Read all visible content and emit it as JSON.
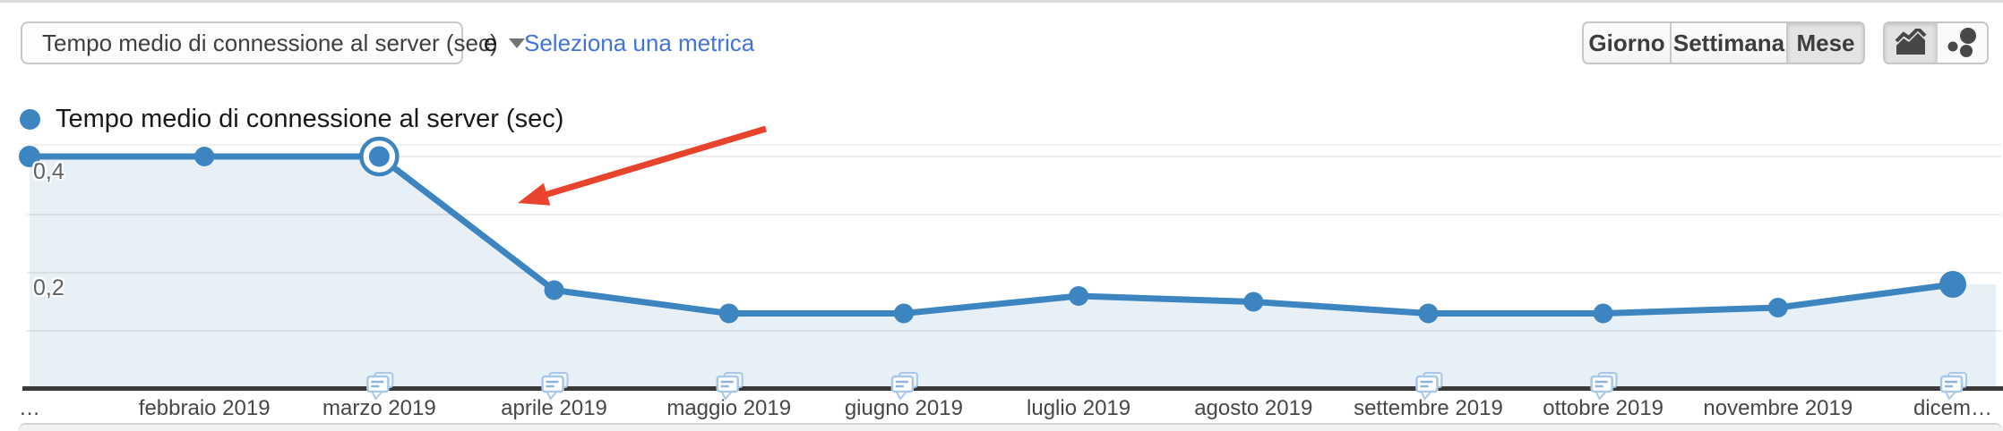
{
  "header": {
    "metric_dropdown": {
      "value": "Tempo medio di connessione al server (sec)"
    },
    "conjunction": "e",
    "select_metric_link": "Seleziona una metrica",
    "granularity_buttons": [
      {
        "label": "Giorno",
        "active": false
      },
      {
        "label": "Settimana",
        "active": false
      },
      {
        "label": "Mese",
        "active": true
      }
    ],
    "chart_type_buttons": [
      {
        "name": "line-chart-icon",
        "active": true
      },
      {
        "name": "bubble-chart-icon",
        "active": false
      }
    ]
  },
  "legend": {
    "label": "Tempo medio di connessione al server (sec)",
    "color": "#3d85c1"
  },
  "chart_data": {
    "type": "area",
    "title": "Tempo medio di connessione al server (sec)",
    "x_categories": [
      "…",
      "febbraio 2019",
      "marzo 2019",
      "aprile 2019",
      "maggio 2019",
      "giugno 2019",
      "luglio 2019",
      "agosto 2019",
      "settembre 2019",
      "ottobre 2019",
      "novembre 2019",
      "dicem…"
    ],
    "series": [
      {
        "name": "Tempo medio di connessione al server (sec)",
        "values": [
          0.4,
          0.4,
          0.4,
          0.17,
          0.13,
          0.13,
          0.16,
          0.15,
          0.13,
          0.13,
          0.14,
          0.18
        ]
      }
    ],
    "ylim": [
      0,
      0.45
    ],
    "yticks": [
      {
        "label": "0,4",
        "value": 0.4
      },
      {
        "label": "0,2",
        "value": 0.2
      }
    ],
    "gridline_values": [
      0.4,
      0.3,
      0.2,
      0.1
    ],
    "grid": true,
    "legend_position": "top-left",
    "selected_point_index": 2,
    "annotation_indices": [
      2,
      3,
      4,
      5,
      8,
      9,
      11
    ],
    "line_color": "#3d85c1",
    "fill_color": "rgba(61,133,193,0.12)",
    "axis_color": "#3a3a3a",
    "annotation_icon_color": "#a9c7e7"
  },
  "overlay_arrow": {
    "name": "red-annotation-arrow",
    "color": "#e8432c"
  }
}
